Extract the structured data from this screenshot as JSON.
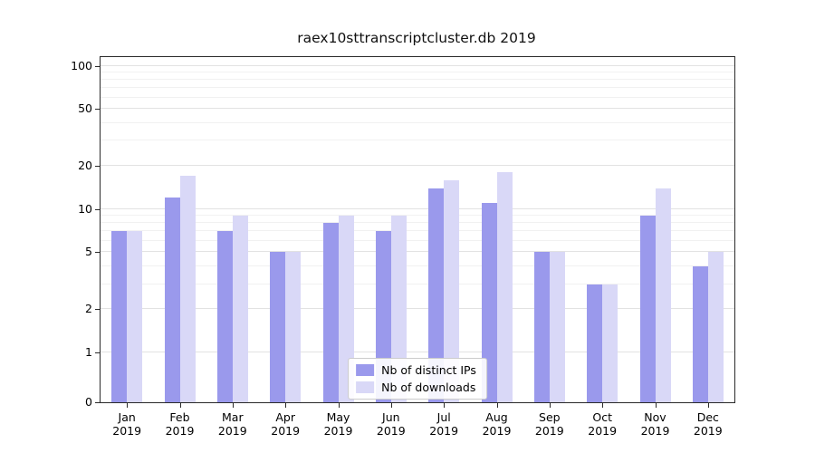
{
  "chart_data": {
    "type": "bar",
    "title": "raex10sttranscriptcluster.db 2019",
    "categories": [
      "Jan",
      "Feb",
      "Mar",
      "Apr",
      "May",
      "Jun",
      "Jul",
      "Aug",
      "Sep",
      "Oct",
      "Nov",
      "Dec"
    ],
    "year": "2019",
    "series": [
      {
        "name": "Nb of distinct IPs",
        "color": "#9a99ec",
        "values": [
          7,
          12,
          7,
          5,
          8,
          7,
          14,
          11,
          5,
          3,
          9,
          4
        ]
      },
      {
        "name": "Nb of downloads",
        "color": "#d9d8f7",
        "values": [
          7,
          17,
          9,
          5,
          9,
          9,
          16,
          18,
          5,
          3,
          14,
          5
        ]
      }
    ],
    "yticks": [
      0,
      1,
      2,
      5,
      10,
      20,
      50,
      100
    ],
    "scale": "symlog",
    "ylim": [
      0,
      115
    ],
    "grid": true,
    "legend_position": "lower center"
  }
}
